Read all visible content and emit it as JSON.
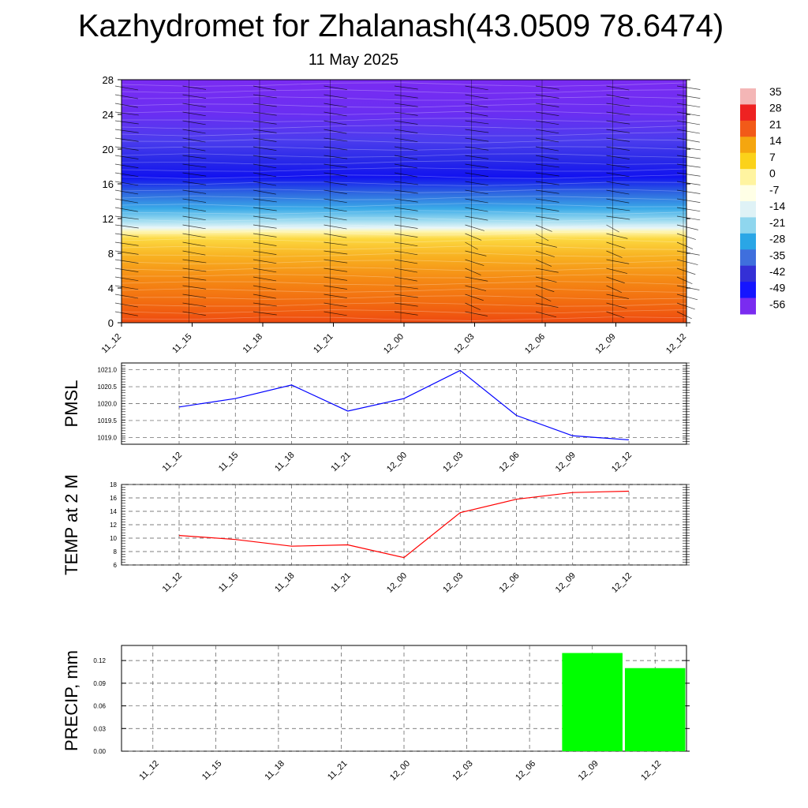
{
  "title": "Kazhydromet for Zhalanash(43.0509 78.6474)",
  "subtitle": "11 May 2025",
  "colors": {
    "pmsl_line": "#0000ff",
    "temp_line": "#ff0000",
    "precip_bar": "#00ff00",
    "grid": "#555555",
    "barb": "#000000"
  },
  "chart_data": [
    {
      "type": "heatmap",
      "title": "",
      "xlabel": "",
      "ylabel": "",
      "x_tick_labels": [
        "11_12",
        "11_15",
        "11_18",
        "11_21",
        "12_00",
        "12_03",
        "12_06",
        "12_09",
        "12_12"
      ],
      "y_ticks": [
        0,
        4,
        8,
        12,
        16,
        20,
        24,
        28
      ],
      "ylim": [
        0,
        28
      ],
      "colorbar_labels": [
        35,
        28,
        21,
        14,
        7,
        0,
        -7,
        -14,
        -21,
        -28,
        -35,
        -42,
        -49,
        -56
      ],
      "colorbar_colors": [
        "#f4b6b6",
        "#ee2222",
        "#f25a18",
        "#f5a60f",
        "#fbd21a",
        "#fff4a0",
        "#ffffe6",
        "#dff2f6",
        "#8fd6ee",
        "#2aa6e6",
        "#3f6fdd",
        "#3430d6",
        "#1515ff",
        "#7a2cf0"
      ],
      "description_of_field": "temperature (C) cross-section: warm near surface, coldest around level 19-20, purple aloft",
      "wind_barbs": "present at each time column"
    },
    {
      "type": "line",
      "ylabel": "PMSL",
      "categories": [
        "11_12",
        "11_15",
        "11_18",
        "11_21",
        "12_00",
        "12_03",
        "12_06",
        "12_09",
        "12_12"
      ],
      "values": [
        1019.9,
        1020.15,
        1020.55,
        1019.78,
        1020.15,
        1020.98,
        1019.65,
        1019.05,
        1018.93
      ],
      "ylim": [
        1018.8,
        1021.2
      ],
      "y_ticks": [
        "1019.0",
        "1019.5",
        "1020.0",
        "1020.5",
        "1021.0"
      ],
      "grid": true
    },
    {
      "type": "line",
      "ylabel": "TEMP at 2 M",
      "categories": [
        "11_12",
        "11_15",
        "11_18",
        "11_21",
        "12_00",
        "12_03",
        "12_06",
        "12_09",
        "12_12"
      ],
      "values": [
        10.4,
        9.8,
        8.8,
        9.0,
        7.1,
        13.8,
        15.8,
        16.8,
        17.0
      ],
      "ylim": [
        6,
        18
      ],
      "y_ticks": [
        "6",
        "8",
        "10",
        "12",
        "14",
        "16",
        "18"
      ],
      "grid": true
    },
    {
      "type": "bar",
      "ylabel": "PRECIP, mm",
      "categories": [
        "11_12",
        "11_15",
        "11_18",
        "11_21",
        "12_00",
        "12_03",
        "12_06",
        "12_09",
        "12_12"
      ],
      "values": [
        0,
        0,
        0,
        0,
        0,
        0,
        0,
        0.13,
        0.11
      ],
      "ylim": [
        0,
        0.14
      ],
      "y_ticks": [
        "0.00",
        "0.03",
        "0.06",
        "0.09",
        "0.12"
      ],
      "grid": true
    }
  ]
}
